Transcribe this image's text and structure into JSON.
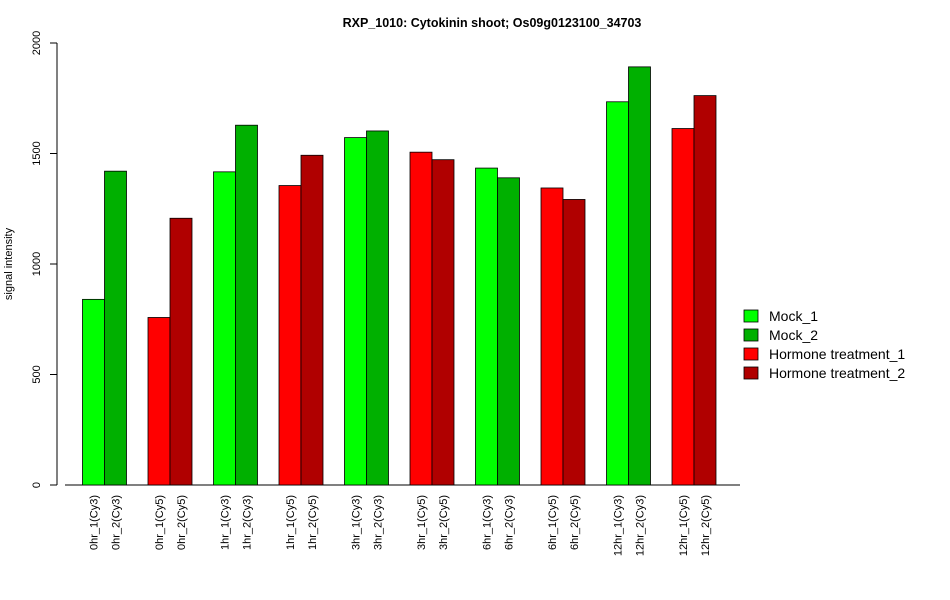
{
  "chart_data": {
    "type": "bar",
    "title": "RXP_1010: Cytokinin shoot; Os09g0123100_34703",
    "xlabel": "",
    "ylabel": "signal intensity",
    "ylim": [
      0,
      2000
    ],
    "yticks": [
      "0",
      "500",
      "1000",
      "1500",
      "2000"
    ],
    "grid": false,
    "legend_position": "right",
    "legend": [
      {
        "label": "Mock_1",
        "color": "#00ff00"
      },
      {
        "label": "Mock_2",
        "color": "#00b000"
      },
      {
        "label": "Hormone treatment_1",
        "color": "#ff0000"
      },
      {
        "label": "Hormone treatment_2",
        "color": "#b00000"
      }
    ],
    "groups": [
      {
        "bars": [
          {
            "label": "0hr_1(Cy3)",
            "value": 840,
            "color": "#00ff00"
          },
          {
            "label": "0hr_2(Cy3)",
            "value": 1420,
            "color": "#00b000"
          }
        ]
      },
      {
        "bars": [
          {
            "label": "0hr_1(Cy5)",
            "value": 758,
            "color": "#ff0000"
          },
          {
            "label": "0hr_2(Cy5)",
            "value": 1207,
            "color": "#b00000"
          }
        ]
      },
      {
        "bars": [
          {
            "label": "1hr_1(Cy3)",
            "value": 1417,
            "color": "#00ff00"
          },
          {
            "label": "1hr_2(Cy3)",
            "value": 1628,
            "color": "#00b000"
          }
        ]
      },
      {
        "bars": [
          {
            "label": "1hr_1(Cy5)",
            "value": 1355,
            "color": "#ff0000"
          },
          {
            "label": "1hr_2(Cy5)",
            "value": 1492,
            "color": "#b00000"
          }
        ]
      },
      {
        "bars": [
          {
            "label": "3hr_1(Cy3)",
            "value": 1572,
            "color": "#00ff00"
          },
          {
            "label": "3hr_2(Cy3)",
            "value": 1602,
            "color": "#00b000"
          }
        ]
      },
      {
        "bars": [
          {
            "label": "3hr_1(Cy5)",
            "value": 1506,
            "color": "#ff0000"
          },
          {
            "label": "3hr_2(Cy5)",
            "value": 1472,
            "color": "#b00000"
          }
        ]
      },
      {
        "bars": [
          {
            "label": "6hr_1(Cy3)",
            "value": 1434,
            "color": "#00ff00"
          },
          {
            "label": "6hr_2(Cy3)",
            "value": 1390,
            "color": "#00b000"
          }
        ]
      },
      {
        "bars": [
          {
            "label": "6hr_1(Cy5)",
            "value": 1344,
            "color": "#ff0000"
          },
          {
            "label": "6hr_2(Cy5)",
            "value": 1292,
            "color": "#b00000"
          }
        ]
      },
      {
        "bars": [
          {
            "label": "12hr_1(Cy3)",
            "value": 1734,
            "color": "#00ff00"
          },
          {
            "label": "12hr_2(Cy3)",
            "value": 1892,
            "color": "#00b000"
          }
        ]
      },
      {
        "bars": [
          {
            "label": "12hr_1(Cy5)",
            "value": 1613,
            "color": "#ff0000"
          },
          {
            "label": "12hr_2(Cy5)",
            "value": 1762,
            "color": "#b00000"
          }
        ]
      }
    ]
  }
}
